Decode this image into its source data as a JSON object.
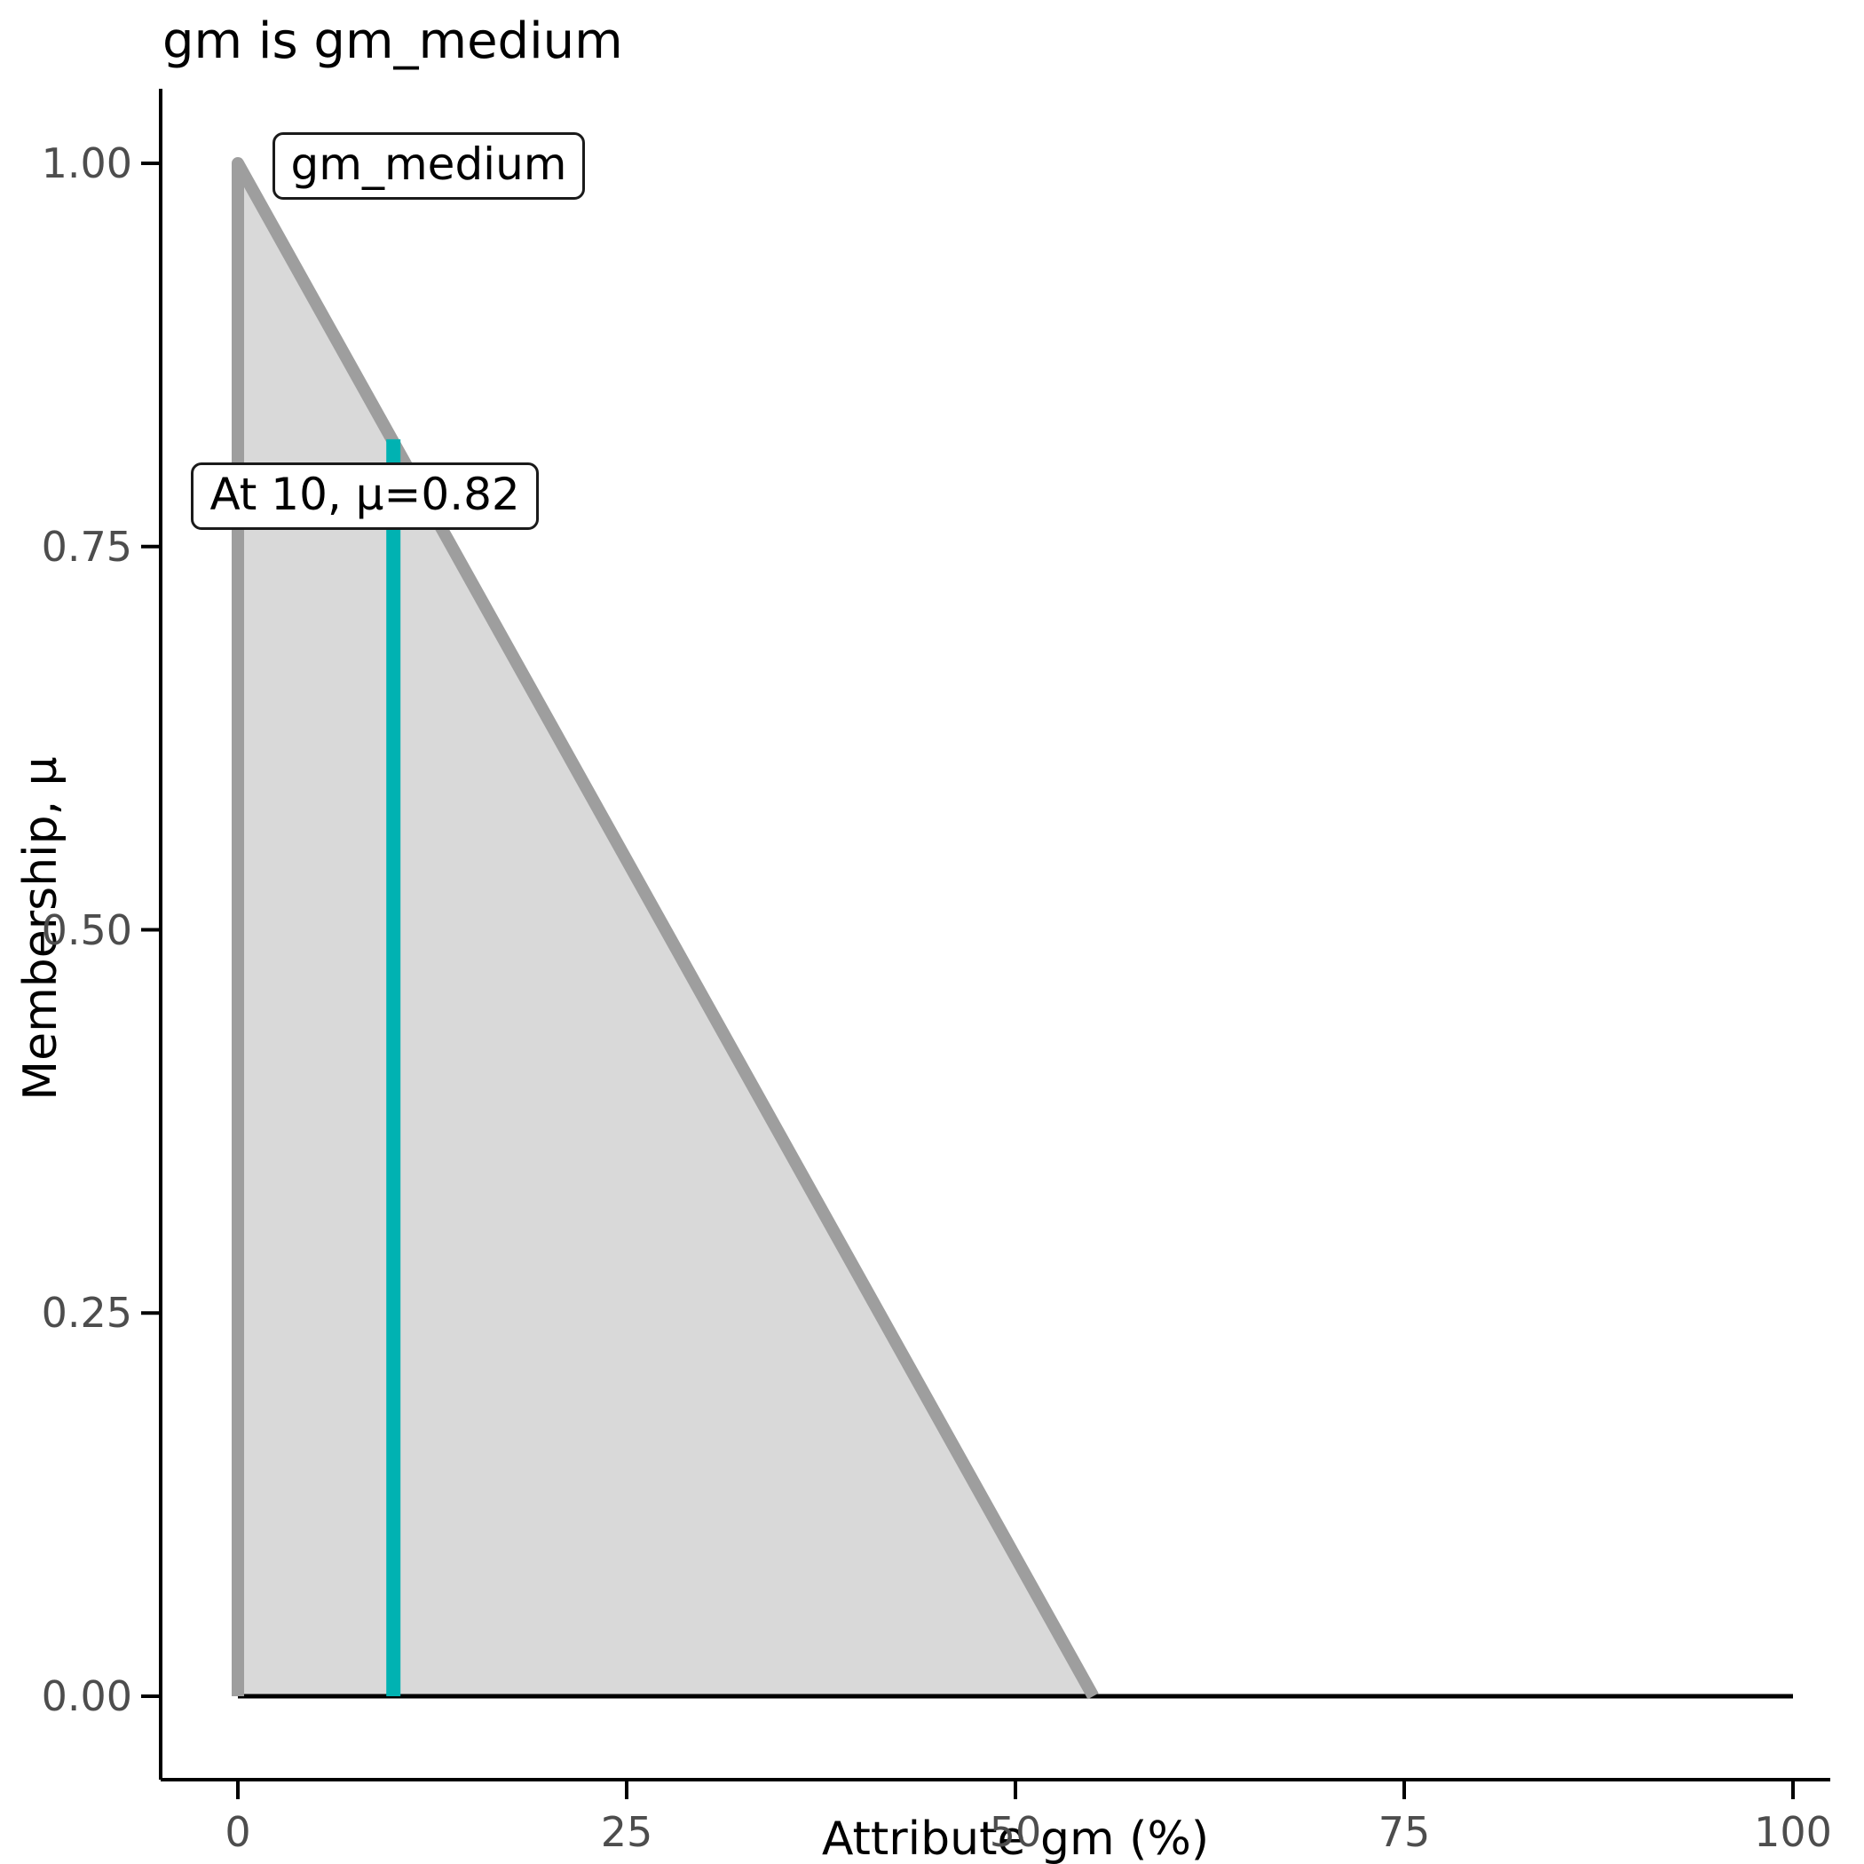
{
  "chart_data": {
    "type": "area",
    "title": "gm is gm_medium",
    "xlabel": "Attribute gm (%)",
    "ylabel": "Membership, μ",
    "xlim": [
      0,
      100
    ],
    "ylim": [
      0,
      1
    ],
    "grid": false,
    "legend": false,
    "x_ticks": [
      {
        "value": 0,
        "label": "0"
      },
      {
        "value": 25,
        "label": "25"
      },
      {
        "value": 50,
        "label": "50"
      },
      {
        "value": 75,
        "label": "75"
      },
      {
        "value": 100,
        "label": "100"
      }
    ],
    "y_ticks": [
      {
        "value": 0,
        "label": "0.00"
      },
      {
        "value": 0.25,
        "label": "0.25"
      },
      {
        "value": 0.5,
        "label": "0.50"
      },
      {
        "value": 0.75,
        "label": "0.75"
      },
      {
        "value": 1,
        "label": "1.00"
      }
    ],
    "series": [
      {
        "name": "gm_medium",
        "kind": "membership-function",
        "points": [
          [
            0,
            0
          ],
          [
            0,
            1
          ],
          [
            55,
            0
          ]
        ],
        "fill": "#d9d9d9",
        "stroke": "#9e9e9e"
      }
    ],
    "baseline": {
      "x": [
        0,
        100
      ],
      "mu": 0,
      "color": "#000000"
    },
    "marker": {
      "x": 10,
      "mu": 0.82,
      "color": "#00b2b2"
    },
    "annotations": [
      {
        "id": "set-label",
        "text": "gm_medium",
        "x": 2.2,
        "y": 1.02
      },
      {
        "id": "marker-label",
        "text": "At 10, μ=0.82",
        "x": -3,
        "y": 0.805
      }
    ],
    "colors": {
      "axis": "#000000",
      "tick_text": "#4d4d4d",
      "title_text": "#000000"
    }
  }
}
